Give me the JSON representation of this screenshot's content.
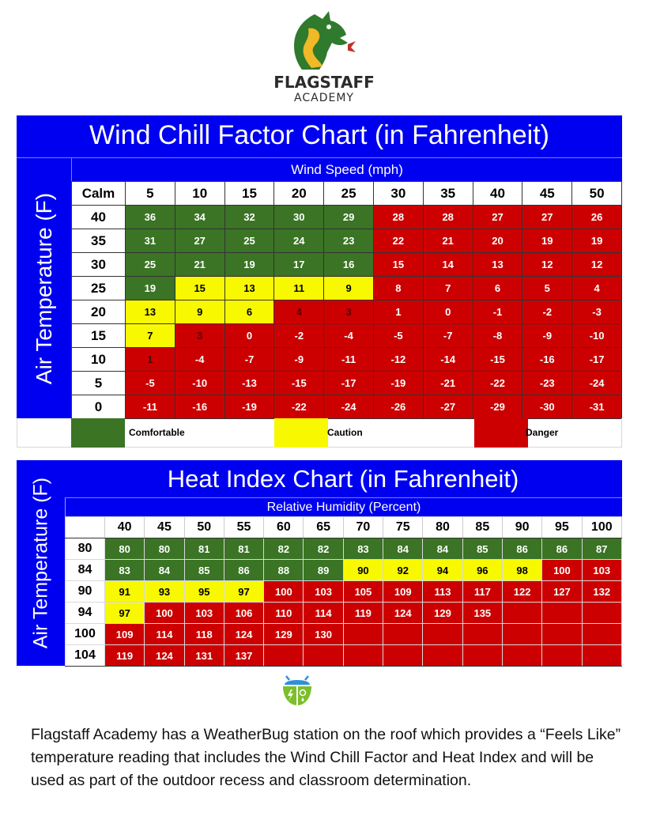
{
  "logo": {
    "icon": "dragon-icon",
    "name": "FLAGSTAFF",
    "subtitle": "ACADEMY"
  },
  "colors": {
    "header_blue": "#0000f0",
    "comfortable": "#3a7424",
    "caution": "#f8f800",
    "danger": "#cc0000"
  },
  "wind_chill": {
    "title": "Wind Chill Factor Chart (in Fahrenheit)",
    "x_label": "Wind Speed (mph)",
    "y_label": "Air Temperature (F)",
    "columns": [
      "Calm",
      "5",
      "10",
      "15",
      "20",
      "25",
      "30",
      "35",
      "40",
      "45",
      "50"
    ],
    "legend": [
      {
        "label": "Comfortable",
        "color": "#3a7424"
      },
      {
        "label": "Caution",
        "color": "#f8f800"
      },
      {
        "label": "Danger",
        "color": "#cc0000"
      }
    ]
  },
  "heat_index": {
    "title": "Heat Index Chart (in Fahrenheit)",
    "x_label": "Relative Humidity (Percent)",
    "y_label": "Air Temperature (F)",
    "columns": [
      "",
      "40",
      "45",
      "50",
      "55",
      "60",
      "65",
      "70",
      "75",
      "80",
      "85",
      "90",
      "95",
      "100"
    ]
  },
  "chart_data": [
    {
      "type": "table",
      "title": "Wind Chill Factor Chart (in Fahrenheit)",
      "xlabel": "Wind Speed (mph)",
      "ylabel": "Air Temperature (F)",
      "x": [
        5,
        10,
        15,
        20,
        25,
        30,
        35,
        40,
        45,
        50
      ],
      "rows": [
        {
          "temp": 40,
          "values": [
            36,
            34,
            32,
            30,
            29,
            28,
            28,
            27,
            27,
            26
          ],
          "zones": [
            "g",
            "g",
            "g",
            "g",
            "g",
            "r",
            "r",
            "r",
            "r",
            "r"
          ]
        },
        {
          "temp": 35,
          "values": [
            31,
            27,
            25,
            24,
            23,
            22,
            21,
            20,
            19,
            19
          ],
          "zones": [
            "g",
            "g",
            "g",
            "g",
            "g",
            "r",
            "r",
            "r",
            "r",
            "r"
          ]
        },
        {
          "temp": 30,
          "values": [
            25,
            21,
            19,
            17,
            16,
            15,
            14,
            13,
            12,
            12
          ],
          "zones": [
            "g",
            "g",
            "g",
            "g",
            "g",
            "r",
            "r",
            "r",
            "r",
            "r"
          ]
        },
        {
          "temp": 25,
          "values": [
            19,
            15,
            13,
            11,
            9,
            8,
            7,
            6,
            5,
            4
          ],
          "zones": [
            "g",
            "y",
            "y",
            "y",
            "y",
            "r",
            "r",
            "r",
            "r",
            "r"
          ]
        },
        {
          "temp": 20,
          "values": [
            13,
            9,
            6,
            4,
            3,
            1,
            0,
            -1,
            -2,
            -3
          ],
          "zones": [
            "y",
            "y",
            "y",
            "rd",
            "rd",
            "r",
            "r",
            "r",
            "r",
            "r"
          ]
        },
        {
          "temp": 15,
          "values": [
            7,
            3,
            0,
            -2,
            -4,
            -5,
            -7,
            -8,
            -9,
            -10
          ],
          "zones": [
            "y",
            "rd",
            "r",
            "r",
            "r",
            "r",
            "r",
            "r",
            "r",
            "r"
          ]
        },
        {
          "temp": 10,
          "values": [
            1,
            -4,
            -7,
            -9,
            -11,
            -12,
            -14,
            -15,
            -16,
            -17
          ],
          "zones": [
            "rd",
            "r",
            "r",
            "r",
            "r",
            "r",
            "r",
            "r",
            "r",
            "r"
          ]
        },
        {
          "temp": 5,
          "values": [
            -5,
            -10,
            -13,
            -15,
            -17,
            -19,
            -21,
            -22,
            -23,
            -24
          ],
          "zones": [
            "r",
            "r",
            "r",
            "r",
            "r",
            "r",
            "r",
            "r",
            "r",
            "r"
          ]
        },
        {
          "temp": 0,
          "values": [
            -11,
            -16,
            -19,
            -22,
            -24,
            -26,
            -27,
            -29,
            -30,
            -31
          ],
          "zones": [
            "r",
            "r",
            "r",
            "r",
            "r",
            "r",
            "r",
            "r",
            "r",
            "r"
          ]
        }
      ],
      "legend": [
        "Comfortable",
        "Caution",
        "Danger"
      ]
    },
    {
      "type": "table",
      "title": "Heat Index Chart (in Fahrenheit)",
      "xlabel": "Relative Humidity (Percent)",
      "ylabel": "Air Temperature (F)",
      "x": [
        40,
        45,
        50,
        55,
        60,
        65,
        70,
        75,
        80,
        85,
        90,
        95,
        100
      ],
      "rows": [
        {
          "temp": 80,
          "values": [
            80,
            80,
            81,
            81,
            82,
            82,
            83,
            84,
            84,
            85,
            86,
            86,
            87
          ],
          "zones": [
            "g",
            "g",
            "g",
            "g",
            "g",
            "g",
            "g",
            "g",
            "g",
            "g",
            "g",
            "g",
            "g"
          ]
        },
        {
          "temp": 84,
          "values": [
            83,
            84,
            85,
            86,
            88,
            89,
            90,
            92,
            94,
            96,
            98,
            100,
            103
          ],
          "zones": [
            "g",
            "g",
            "g",
            "g",
            "g",
            "g",
            "y",
            "y",
            "y",
            "y",
            "y",
            "r",
            "r"
          ]
        },
        {
          "temp": 90,
          "values": [
            91,
            93,
            95,
            97,
            100,
            103,
            105,
            109,
            113,
            117,
            122,
            127,
            132
          ],
          "zones": [
            "y",
            "y",
            "y",
            "y",
            "r",
            "r",
            "r",
            "r",
            "r",
            "r",
            "r",
            "r",
            "r"
          ]
        },
        {
          "temp": 94,
          "values": [
            97,
            100,
            103,
            106,
            110,
            114,
            119,
            124,
            129,
            135,
            "",
            "",
            ""
          ],
          "zones": [
            "y",
            "r",
            "r",
            "r",
            "r",
            "r",
            "r",
            "r",
            "r",
            "r",
            "r",
            "r",
            "r"
          ]
        },
        {
          "temp": 100,
          "values": [
            109,
            114,
            118,
            124,
            129,
            130,
            "",
            "",
            "",
            "",
            "",
            "",
            ""
          ],
          "zones": [
            "r",
            "r",
            "r",
            "r",
            "r",
            "r",
            "r",
            "r",
            "r",
            "r",
            "r",
            "r",
            "r"
          ]
        },
        {
          "temp": 104,
          "values": [
            119,
            124,
            131,
            137,
            "",
            "",
            "",
            "",
            "",
            "",
            "",
            "",
            ""
          ],
          "zones": [
            "r",
            "r",
            "r",
            "r",
            "r",
            "r",
            "r",
            "r",
            "r",
            "r",
            "r",
            "r",
            "r"
          ]
        }
      ]
    }
  ],
  "weatherbug": {
    "icon": "weatherbug-icon"
  },
  "description": "Flagstaff Academy has a WeatherBug station on the roof which provides a “Feels Like” temperature reading that includes the Wind Chill Factor and Heat Index and will be used as part of the outdoor recess and classroom determination."
}
